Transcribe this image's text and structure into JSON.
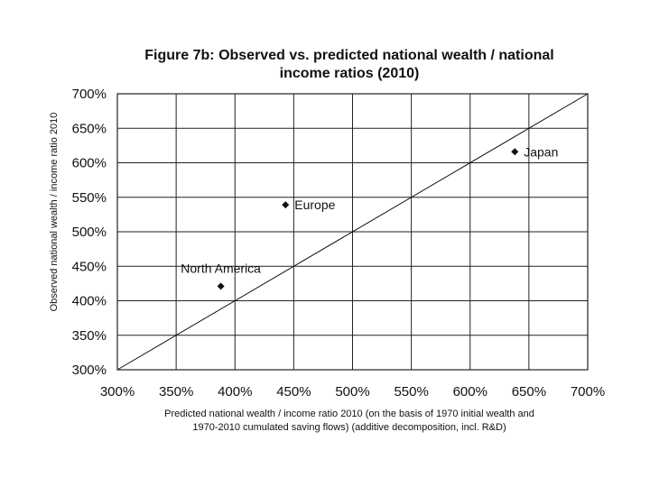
{
  "chart_data": {
    "type": "scatter",
    "title_lines": [
      "Figure 7b: Observed vs. predicted national wealth / national",
      "income ratios (2010)"
    ],
    "ylabel": "Observed national  wealth / income ratio 2010",
    "xlabel_lines": [
      "Predicted national wealth / income ratio 2010 (on the basis of 1970 initial wealth and",
      "1970-2010 cumulated saving flows) (additive decomposition, incl. R&D)"
    ],
    "xlim": [
      300,
      700
    ],
    "ylim": [
      300,
      700
    ],
    "xticks": [
      300,
      350,
      400,
      450,
      500,
      550,
      600,
      650,
      700
    ],
    "yticks": [
      300,
      350,
      400,
      450,
      500,
      550,
      600,
      650,
      700
    ],
    "xtick_labels": [
      "300%",
      "350%",
      "400%",
      "450%",
      "500%",
      "550%",
      "600%",
      "650%",
      "700%"
    ],
    "ytick_labels": [
      "300%",
      "350%",
      "400%",
      "450%",
      "500%",
      "550%",
      "600%",
      "650%",
      "700%"
    ],
    "grid": true,
    "reference_line": {
      "x": [
        300,
        700
      ],
      "y": [
        300,
        700
      ]
    },
    "points": [
      {
        "label": "North America",
        "x": 388,
        "y": 421,
        "label_pos": "above"
      },
      {
        "label": "Europe",
        "x": 443,
        "y": 539,
        "label_pos": "right"
      },
      {
        "label": "Japan",
        "x": 638,
        "y": 616,
        "label_pos": "right"
      }
    ],
    "colors": {
      "marker": "#111111",
      "grid": "#222222",
      "background": "#ffffff"
    }
  }
}
